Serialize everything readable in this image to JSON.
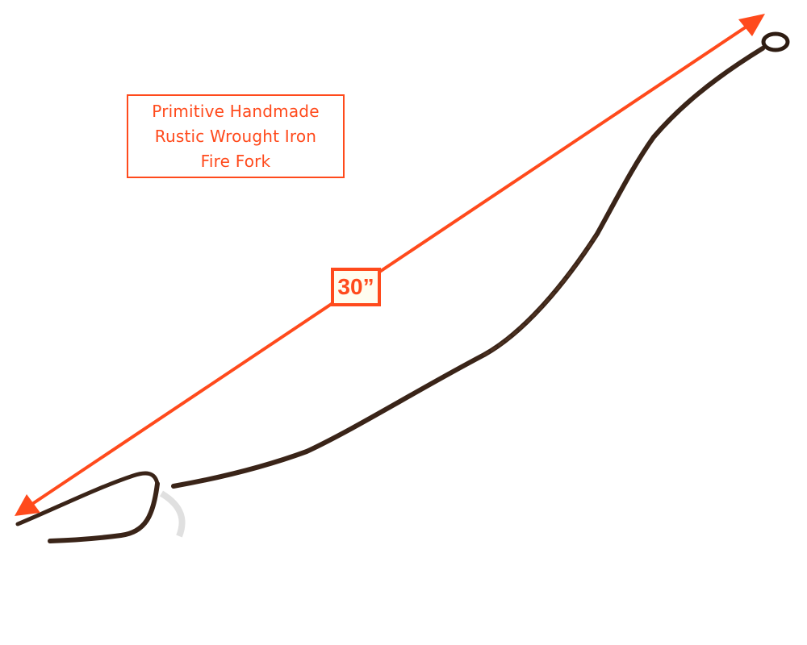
{
  "title": {
    "lines": [
      "Primitive Handmade",
      "Rustic Wrought Iron",
      "Fire Fork"
    ]
  },
  "measurement": {
    "label": "30”"
  },
  "colors": {
    "annotation": "#ff4a1c",
    "iron": "#3a2418"
  }
}
